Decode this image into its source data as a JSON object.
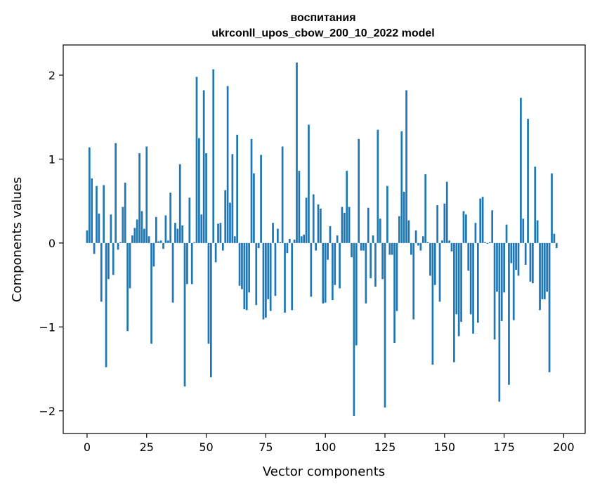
{
  "chart_data": {
    "type": "bar",
    "title": "воспитания",
    "subtitle": "ukrconll_upos_cbow_200_10_2022 model",
    "xlabel": "Vector components",
    "ylabel": "Components values",
    "xlim": [
      -10,
      209
    ],
    "ylim": [
      -2.27,
      2.36
    ],
    "xticks": [
      0,
      25,
      50,
      75,
      100,
      125,
      150,
      175,
      200
    ],
    "yticks": [
      -2,
      -1,
      0,
      1,
      2
    ],
    "xtick_labels": [
      "0",
      "25",
      "50",
      "75",
      "100",
      "125",
      "150",
      "175",
      "200"
    ],
    "ytick_labels": [
      "−2",
      "−1",
      "0",
      "1",
      "2"
    ],
    "grid": false,
    "color": "#1f77b4",
    "values": [
      0.15,
      1.14,
      0.77,
      -0.13,
      0.68,
      0.35,
      -0.7,
      0.69,
      -1.48,
      -0.43,
      0.34,
      -0.38,
      1.19,
      -0.08,
      0.01,
      0.43,
      0.72,
      -1.05,
      -0.54,
      0.09,
      0.18,
      0.28,
      1.07,
      0.38,
      0.17,
      1.15,
      0.08,
      -1.2,
      -0.28,
      0.31,
      0.02,
      0.03,
      -0.07,
      0.33,
      0.03,
      0.6,
      -0.71,
      0.24,
      0.17,
      0.94,
      0.21,
      -1.71,
      -0.49,
      0.54,
      -0.49,
      0.01,
      1.98,
      1.25,
      0.34,
      1.82,
      1.07,
      -1.2,
      -1.6,
      2.07,
      -0.23,
      0.23,
      0.24,
      -0.09,
      0.63,
      1.87,
      0.48,
      1.06,
      0.08,
      1.29,
      -0.51,
      -0.55,
      -0.79,
      -0.8,
      -0.59,
      1.24,
      0.83,
      -0.74,
      -0.06,
      1.05,
      -0.91,
      -0.89,
      -0.67,
      -0.81,
      0.24,
      -0.63,
      0.17,
      0.01,
      1.15,
      -0.83,
      -0.12,
      0.05,
      -0.8,
      0.04,
      2.15,
      0.86,
      0.08,
      0.1,
      0.54,
      1.41,
      -0.64,
      0.58,
      -0.09,
      0.46,
      0.41,
      -0.72,
      -0.71,
      -0.2,
      0.2,
      -0.68,
      -0.5,
      0.09,
      -0.54,
      0.43,
      0.36,
      0.86,
      0.43,
      -0.17,
      -2.06,
      -1.22,
      1.24,
      -0.09,
      -0.09,
      -0.72,
      0.42,
      -0.42,
      0.09,
      -0.52,
      1.35,
      0.29,
      -0.43,
      -1.96,
      0.68,
      -0.14,
      -0.14,
      -1.19,
      -0.81,
      0.32,
      1.33,
      0.61,
      1.82,
      0.27,
      -0.14,
      -0.91,
      0.15,
      -0.03,
      -0.09,
      0.08,
      0.82,
      0.01,
      -0.39,
      -1.45,
      -0.5,
      0.45,
      -0.7,
      0.03,
      0.47,
      0.73,
      0.03,
      -0.1,
      -1.42,
      -0.85,
      -1.11,
      -0.94,
      0.38,
      0.34,
      -0.33,
      -0.85,
      -1.08,
      0.24,
      -0.95,
      0.53,
      0.55,
      0.01,
      -0.01,
      0.01,
      0.39,
      -1.15,
      -0.58,
      -1.89,
      -0.93,
      -0.59,
      0.22,
      -1.69,
      -0.24,
      -0.92,
      -0.32,
      -0.39,
      1.73,
      0.29,
      -0.26,
      1.48,
      -0.46,
      -0.48,
      0.91,
      0.27,
      -0.8,
      -0.67,
      -0.67,
      -0.58,
      -1.54,
      0.83,
      0.11,
      -0.06
    ]
  }
}
